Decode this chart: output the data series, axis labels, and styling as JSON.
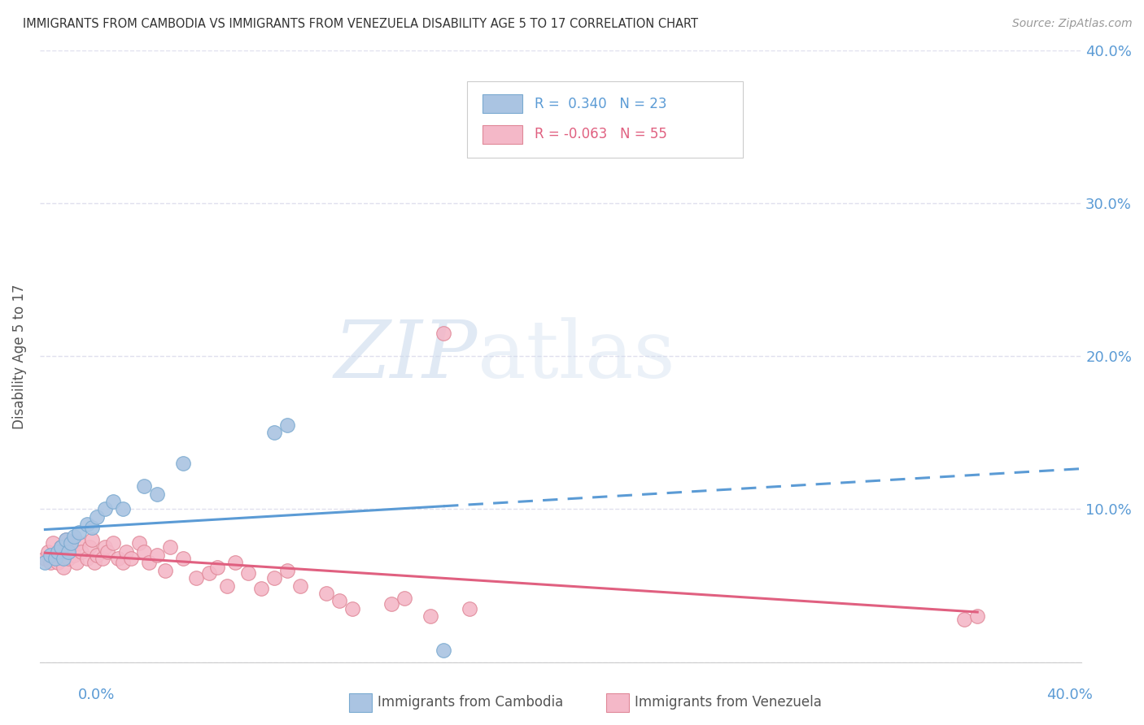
{
  "title": "IMMIGRANTS FROM CAMBODIA VS IMMIGRANTS FROM VENEZUELA DISABILITY AGE 5 TO 17 CORRELATION CHART",
  "source": "Source: ZipAtlas.com",
  "ylabel": "Disability Age 5 to 17",
  "legend_label1": "Immigrants from Cambodia",
  "legend_label2": "Immigrants from Venezuela",
  "R_cambodia": 0.34,
  "N_cambodia": 23,
  "R_venezuela": -0.063,
  "N_venezuela": 55,
  "cambodia_color": "#aac4e2",
  "cambodia_edge": "#7aaad0",
  "cambodia_line": "#5b9bd5",
  "venezuela_color": "#f4b8c8",
  "venezuela_edge": "#e08898",
  "venezuela_line": "#e06080",
  "axis_color": "#5b9bd5",
  "grid_color": "#e0e0ee",
  "background_color": "#ffffff",
  "watermark_zip": "ZIP",
  "watermark_atlas": "atlas",
  "xlim": [
    0.0,
    0.4
  ],
  "ylim": [
    0.0,
    0.4
  ],
  "cambodia_x": [
    0.002,
    0.004,
    0.006,
    0.007,
    0.008,
    0.009,
    0.01,
    0.011,
    0.012,
    0.013,
    0.015,
    0.018,
    0.02,
    0.022,
    0.025,
    0.028,
    0.032,
    0.04,
    0.045,
    0.055,
    0.09,
    0.095,
    0.155
  ],
  "cambodia_y": [
    0.065,
    0.07,
    0.068,
    0.072,
    0.075,
    0.068,
    0.08,
    0.072,
    0.078,
    0.082,
    0.085,
    0.09,
    0.088,
    0.095,
    0.1,
    0.105,
    0.1,
    0.115,
    0.11,
    0.13,
    0.15,
    0.155,
    0.008
  ],
  "venezuela_x": [
    0.002,
    0.003,
    0.004,
    0.005,
    0.006,
    0.007,
    0.008,
    0.009,
    0.01,
    0.011,
    0.012,
    0.013,
    0.014,
    0.015,
    0.016,
    0.018,
    0.019,
    0.02,
    0.021,
    0.022,
    0.024,
    0.025,
    0.026,
    0.028,
    0.03,
    0.032,
    0.033,
    0.035,
    0.038,
    0.04,
    0.042,
    0.045,
    0.048,
    0.05,
    0.055,
    0.06,
    0.065,
    0.068,
    0.072,
    0.075,
    0.08,
    0.085,
    0.09,
    0.095,
    0.1,
    0.11,
    0.115,
    0.12,
    0.135,
    0.14,
    0.15,
    0.155,
    0.165,
    0.355,
    0.36
  ],
  "venezuela_y": [
    0.068,
    0.072,
    0.065,
    0.078,
    0.07,
    0.065,
    0.075,
    0.062,
    0.08,
    0.068,
    0.075,
    0.07,
    0.065,
    0.078,
    0.072,
    0.068,
    0.075,
    0.08,
    0.065,
    0.07,
    0.068,
    0.075,
    0.072,
    0.078,
    0.068,
    0.065,
    0.072,
    0.068,
    0.078,
    0.072,
    0.065,
    0.07,
    0.06,
    0.075,
    0.068,
    0.055,
    0.058,
    0.062,
    0.05,
    0.065,
    0.058,
    0.048,
    0.055,
    0.06,
    0.05,
    0.045,
    0.04,
    0.035,
    0.038,
    0.042,
    0.03,
    0.215,
    0.035,
    0.028,
    0.03
  ],
  "ytick_labels_right": [
    "",
    "10.0%",
    "20.0%",
    "30.0%",
    "40.0%"
  ],
  "yticks": [
    0.0,
    0.1,
    0.2,
    0.3,
    0.4
  ]
}
